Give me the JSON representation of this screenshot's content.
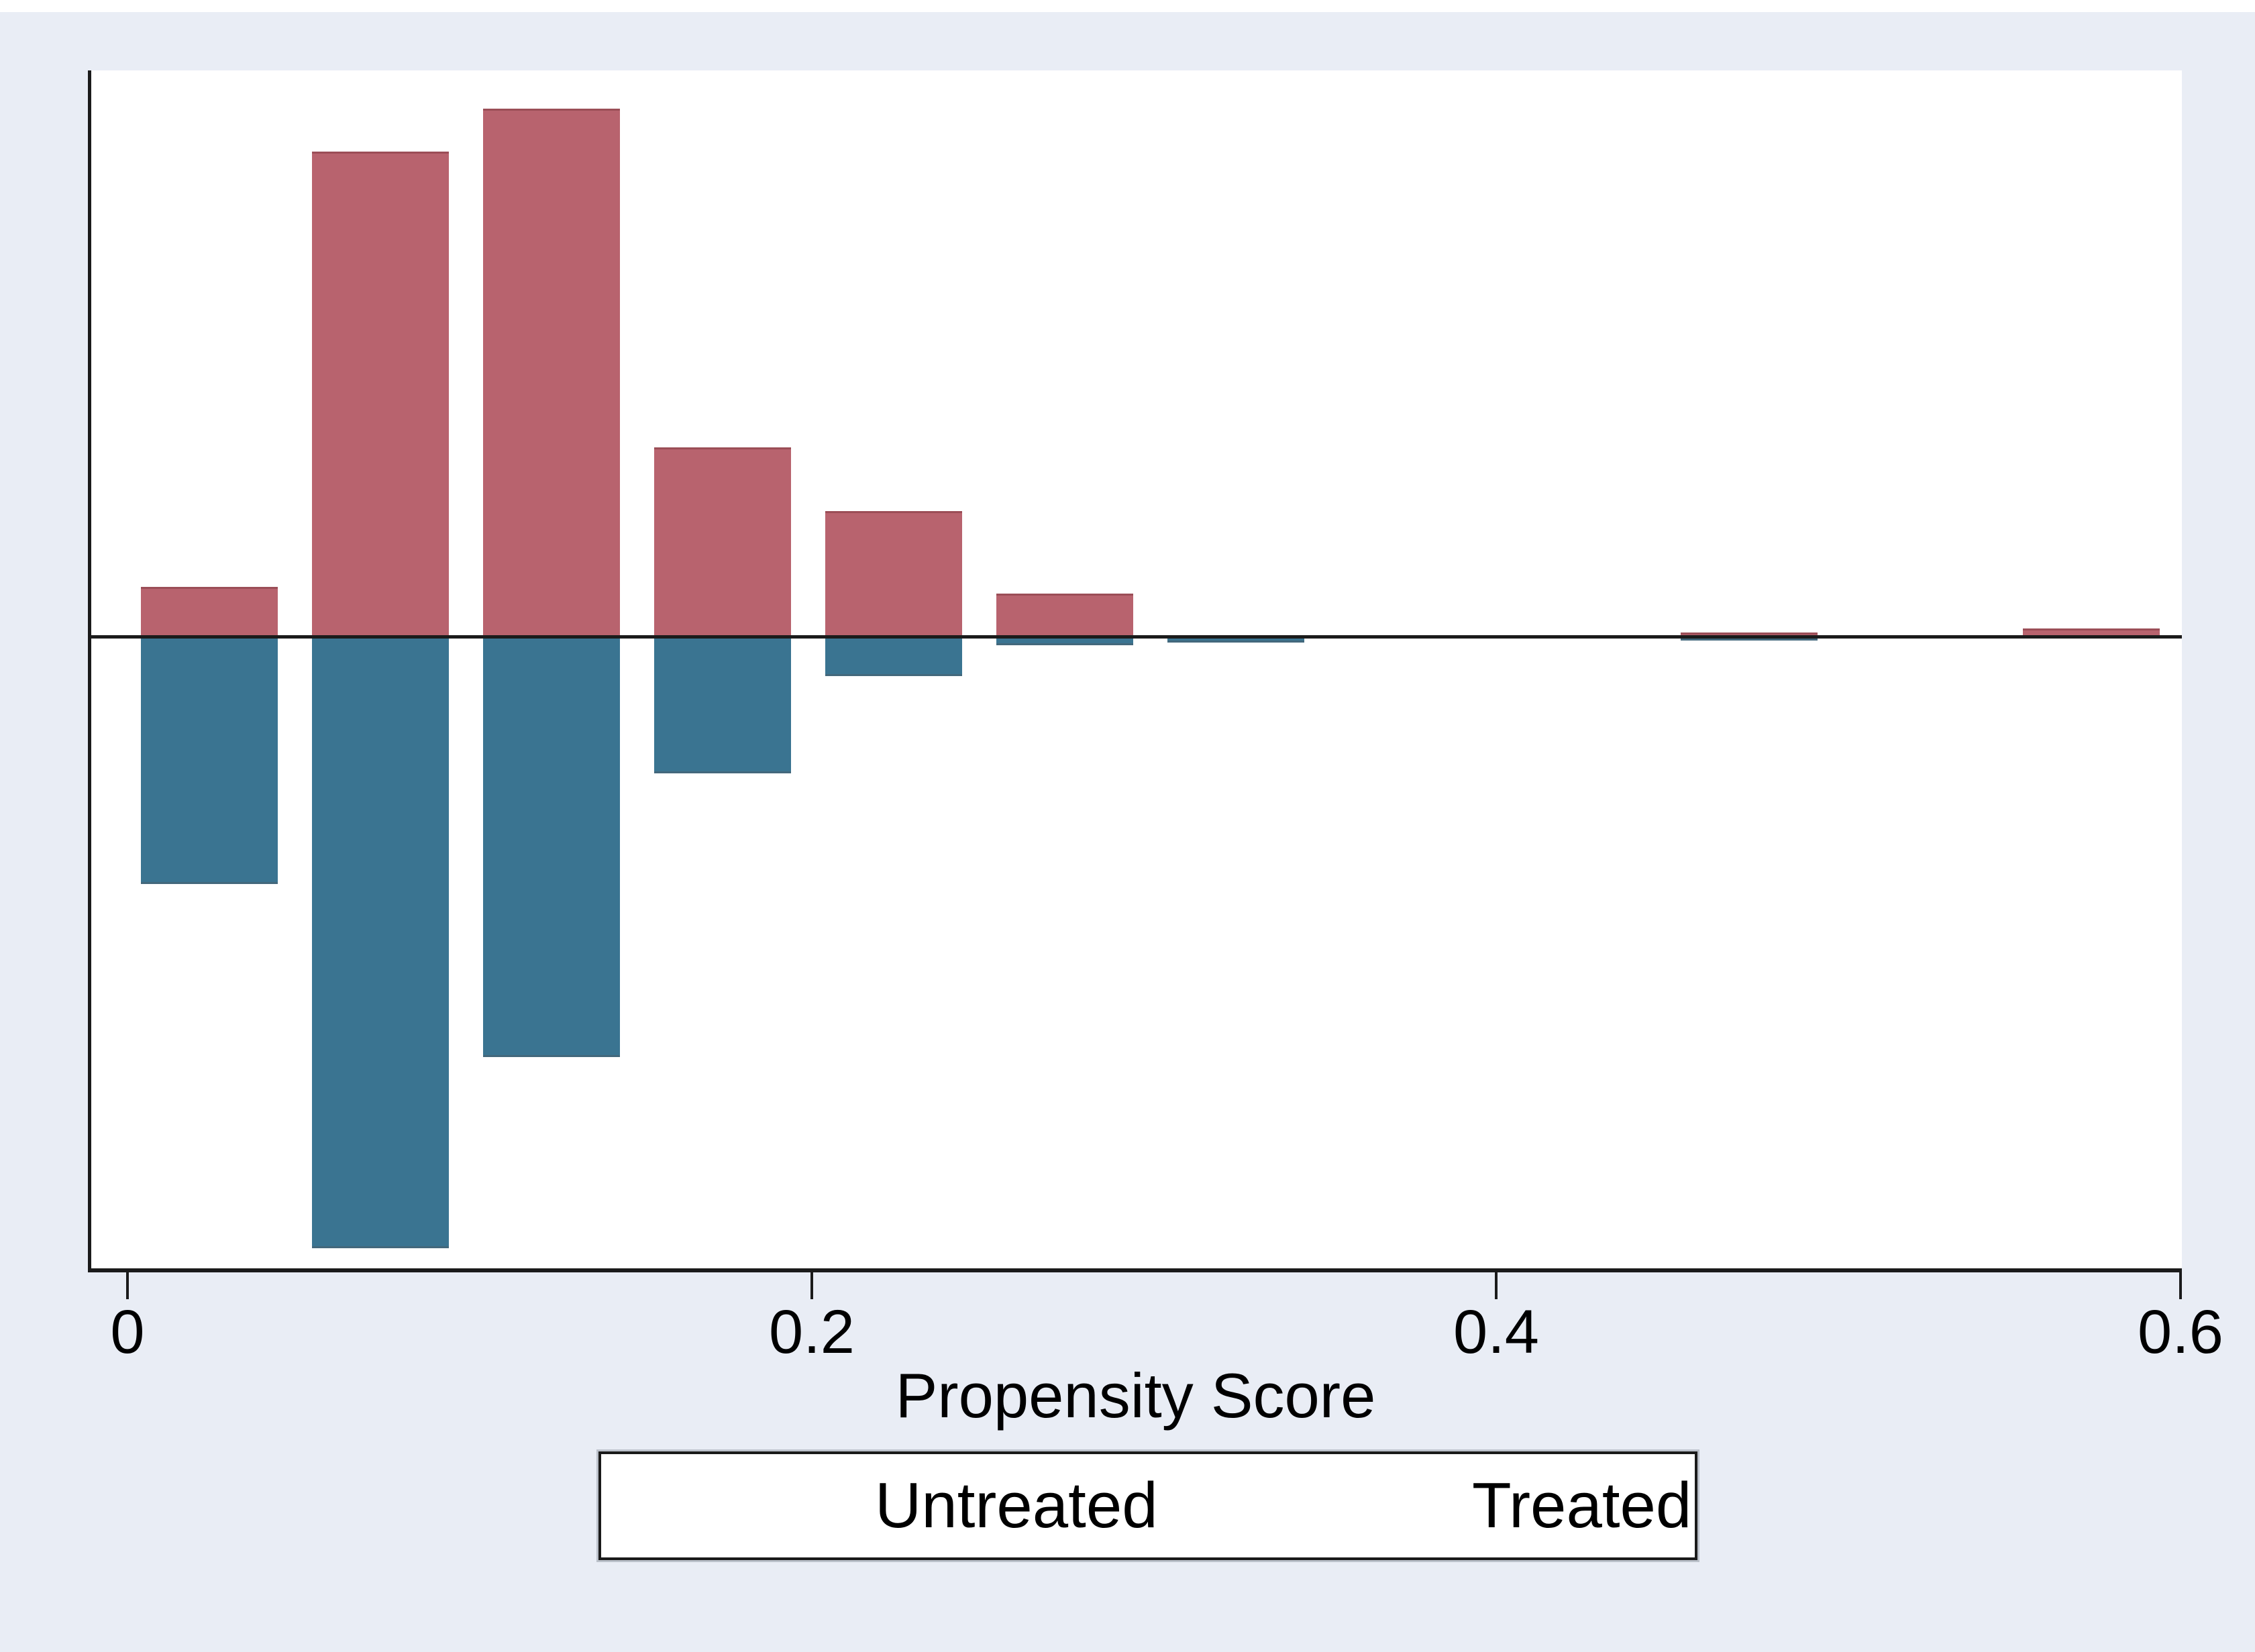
{
  "axis": {
    "x": {
      "title": "Propensity Score",
      "range": [
        0,
        0.6
      ],
      "ticks": [
        {
          "value": 0.0,
          "label": "0"
        },
        {
          "value": 0.2,
          "label": "0.2"
        },
        {
          "value": 0.4,
          "label": "0.4"
        },
        {
          "value": 0.6,
          "label": "0.6"
        }
      ]
    },
    "y": {
      "title": "",
      "tick_labels": "none (unlabeled relative frequency axis)"
    }
  },
  "legend": {
    "position": "bottom-center",
    "items": [
      {
        "label": "Untreated",
        "color": "#3a7491"
      },
      {
        "label": "Treated",
        "color": "#b8636e"
      }
    ]
  },
  "colors": {
    "treated": "#b8636e",
    "untreated": "#3a7491",
    "background": "#e9edf5",
    "plot_background": "#ffffff",
    "axis": "#1b1b1b"
  },
  "chart_data": {
    "type": "bar",
    "subtype": "mirror-histogram (treated above axis, untreated below axis)",
    "title": "",
    "xlabel": "Propensity Score",
    "ylabel": "",
    "x_range": [
      0,
      0.6
    ],
    "bin_width": 0.05,
    "y_units": "relative frequency (no y tick labels shown)",
    "grid": "off",
    "legend_position": "bottom-center",
    "bins": [
      {
        "x_start": 0.0,
        "treated": 0.74,
        "untreated": 3.66
      },
      {
        "x_start": 0.05,
        "treated": 7.23,
        "untreated": 9.09
      },
      {
        "x_start": 0.1,
        "treated": 7.87,
        "untreated": 6.24
      },
      {
        "x_start": 0.15,
        "treated": 2.82,
        "untreated": 2.01
      },
      {
        "x_start": 0.2,
        "treated": 1.87,
        "untreated": 0.56
      },
      {
        "x_start": 0.25,
        "treated": 0.64,
        "untreated": 0.1
      },
      {
        "x_start": 0.3,
        "treated": 0.0,
        "untreated": 0.06
      },
      {
        "x_start": 0.45,
        "treated": 0.06,
        "untreated": 0.03
      },
      {
        "x_start": 0.55,
        "treated": 0.12,
        "untreated": 0.0
      }
    ],
    "series": [
      {
        "name": "Treated",
        "side": "above-axis",
        "color": "#b8636e",
        "values": [
          0.74,
          7.23,
          7.87,
          2.82,
          1.87,
          0.64,
          0.0,
          0.06,
          0.12
        ]
      },
      {
        "name": "Untreated",
        "side": "below-axis",
        "color": "#3a7491",
        "values": [
          3.66,
          9.09,
          6.24,
          2.01,
          0.56,
          0.1,
          0.06,
          0.03,
          0.0
        ]
      }
    ]
  }
}
